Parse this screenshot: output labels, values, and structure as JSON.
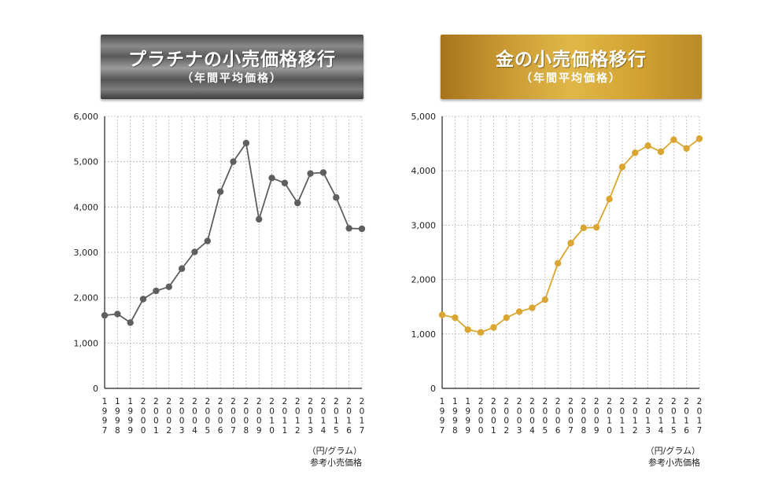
{
  "platinum": {
    "title": "プラチナの小売価格移行",
    "subtitle": "（年間平均価格）",
    "unit_label": "（円/グラム）",
    "source_label": "参考小売価格"
  },
  "gold": {
    "title": "金の小売価格移行",
    "subtitle": "（年間平均価格）",
    "unit_label": "（円/グラム）",
    "source_label": "参考小売価格"
  },
  "colors": {
    "platinum_line": "#5f5f5f",
    "gold_line": "#dba531",
    "grid": "#b5b5b5",
    "axis": "#222222"
  },
  "chart_data": [
    {
      "type": "line",
      "title": "プラチナの小売価格移行",
      "categories": [
        "1997",
        "1998",
        "1999",
        "2000",
        "2001",
        "2002",
        "2003",
        "2004",
        "2005",
        "2006",
        "2007",
        "2008",
        "2009",
        "2010",
        "2011",
        "2012",
        "2013",
        "2014",
        "2015",
        "2016",
        "2017"
      ],
      "values": [
        1610,
        1640,
        1450,
        1970,
        2150,
        2240,
        2640,
        3010,
        3250,
        4340,
        5000,
        5410,
        3730,
        4640,
        4530,
        4090,
        4740,
        4760,
        4210,
        3530,
        3520
      ],
      "xlabel": "",
      "ylabel": "",
      "ylim": [
        0,
        6000
      ],
      "yticks": [
        "0",
        "1,000",
        "2,000",
        "3,000",
        "4,000",
        "5,000",
        "6,000"
      ],
      "grid": true
    },
    {
      "type": "line",
      "title": "金の小売価格移行",
      "categories": [
        "1997",
        "1998",
        "1999",
        "2000",
        "2001",
        "2002",
        "2003",
        "2004",
        "2005",
        "2006",
        "2007",
        "2008",
        "2009",
        "2010",
        "2011",
        "2012",
        "2013",
        "2014",
        "2015",
        "2016",
        "2017"
      ],
      "values": [
        1350,
        1300,
        1080,
        1030,
        1120,
        1300,
        1410,
        1480,
        1630,
        2300,
        2670,
        2950,
        2960,
        3480,
        4070,
        4330,
        4460,
        4350,
        4570,
        4410,
        4590
      ],
      "xlabel": "",
      "ylabel": "",
      "ylim": [
        0,
        5000
      ],
      "yticks": [
        "0",
        "1,000",
        "2,000",
        "3,000",
        "4,000",
        "5,000"
      ],
      "grid": true
    }
  ]
}
